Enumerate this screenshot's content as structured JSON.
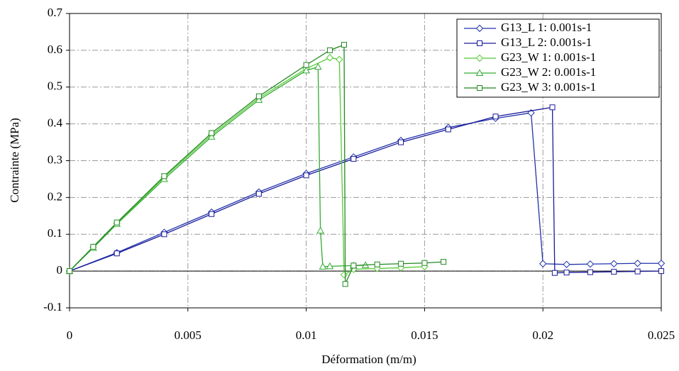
{
  "chart_data": {
    "type": "line",
    "xlabel": "Déformation (m/m)",
    "ylabel": "Contrainte (MPa)",
    "xlim": [
      0,
      0.025
    ],
    "xticks": [
      0,
      0.005,
      0.01,
      0.015,
      0.02,
      0.025
    ],
    "ylim": [
      -0.1,
      0.7
    ],
    "yticks": [
      -0.1,
      0,
      0.1,
      0.2,
      0.3,
      0.4,
      0.5,
      0.6,
      0.7
    ],
    "grid": true,
    "legend": "upper right",
    "series": [
      {
        "name": "G13_L 1: 0.001s-1",
        "color": "#2233aa",
        "marker": "diamond",
        "x": [
          0,
          0.002,
          0.004,
          0.006,
          0.008,
          0.01,
          0.012,
          0.014,
          0.016,
          0.018,
          0.0195,
          0.02,
          0.021,
          0.022,
          0.023,
          0.024,
          0.025
        ],
        "values": [
          0,
          0.05,
          0.105,
          0.16,
          0.215,
          0.265,
          0.31,
          0.355,
          0.39,
          0.415,
          0.43,
          0.02,
          0.018,
          0.019,
          0.02,
          0.021,
          0.021
        ]
      },
      {
        "name": "G13_L 2: 0.001s-1",
        "color": "#1a1a99",
        "marker": "square",
        "x": [
          0,
          0.002,
          0.004,
          0.006,
          0.008,
          0.01,
          0.012,
          0.014,
          0.016,
          0.018,
          0.0204,
          0.0205,
          0.021,
          0.022,
          0.023,
          0.024,
          0.025
        ],
        "values": [
          0,
          0.048,
          0.1,
          0.155,
          0.21,
          0.26,
          0.305,
          0.35,
          0.385,
          0.42,
          0.445,
          -0.005,
          -0.004,
          -0.003,
          -0.002,
          -0.001,
          0
        ]
      },
      {
        "name": "G23_W 1: 0.001s-1",
        "color": "#55cc33",
        "marker": "diamond",
        "x": [
          0,
          0.001,
          0.002,
          0.004,
          0.006,
          0.008,
          0.01,
          0.011,
          0.0114,
          0.0116,
          0.012,
          0.013,
          0.014,
          0.015
        ],
        "values": [
          0,
          0.065,
          0.13,
          0.255,
          0.37,
          0.47,
          0.55,
          0.58,
          0.575,
          -0.01,
          0.005,
          0.007,
          0.009,
          0.012
        ]
      },
      {
        "name": "G23_W 2: 0.001s-1",
        "color": "#33aa33",
        "marker": "triangle",
        "x": [
          0,
          0.001,
          0.002,
          0.004,
          0.006,
          0.008,
          0.01,
          0.0105,
          0.0106,
          0.0107,
          0.011,
          0.012,
          0.0125
        ],
        "values": [
          0,
          0.063,
          0.128,
          0.25,
          0.365,
          0.465,
          0.545,
          0.555,
          0.11,
          0.012,
          0.013,
          0.015,
          0.016
        ]
      },
      {
        "name": "G23_W 3: 0.001s-1",
        "color": "#228822",
        "marker": "square",
        "x": [
          0,
          0.001,
          0.002,
          0.004,
          0.006,
          0.008,
          0.01,
          0.011,
          0.0116,
          0.01165,
          0.012,
          0.013,
          0.014,
          0.015,
          0.0158
        ],
        "values": [
          0,
          0.066,
          0.132,
          0.258,
          0.375,
          0.475,
          0.56,
          0.6,
          0.615,
          -0.035,
          0.015,
          0.018,
          0.02,
          0.022,
          0.025
        ]
      }
    ]
  }
}
